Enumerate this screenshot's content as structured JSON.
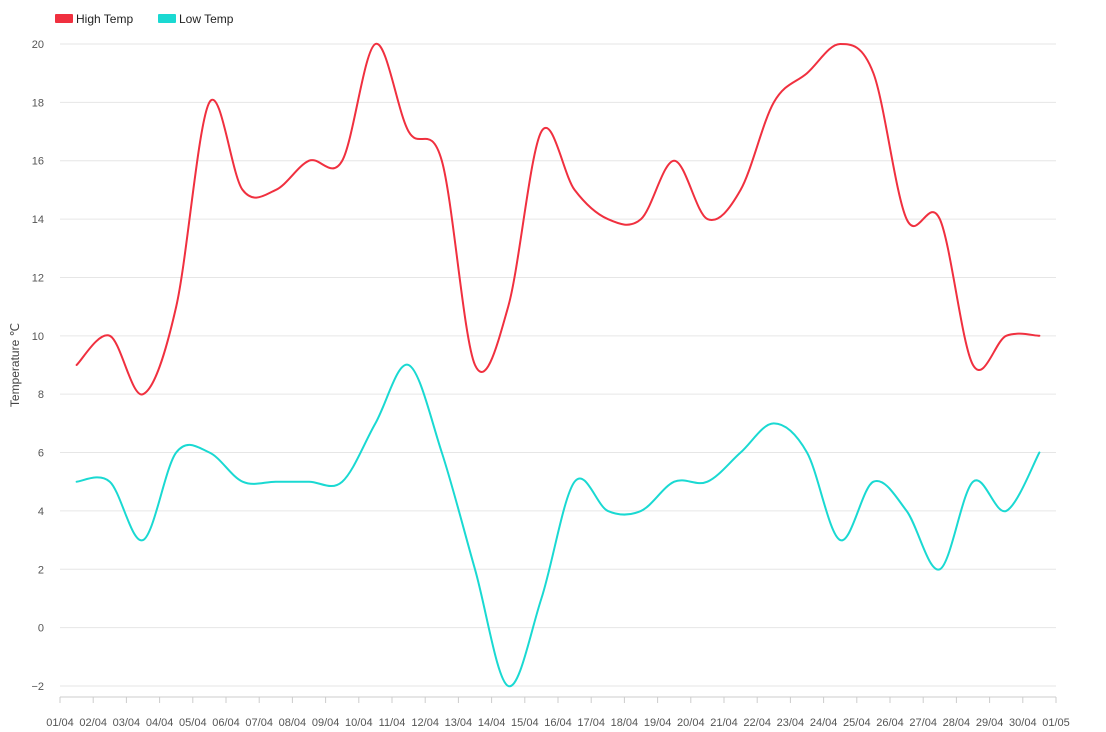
{
  "chart_data": {
    "type": "line",
    "title": "",
    "xlabel": "",
    "ylabel": "Temperature ℃",
    "ylim": [
      -2,
      20
    ],
    "yticks": [
      "20",
      "18",
      "16",
      "14",
      "12",
      "10",
      "8",
      "6",
      "4",
      "2",
      "0",
      "−2"
    ],
    "categories": [
      "04/01",
      "04/02",
      "04/03",
      "04/04",
      "04/05",
      "04/06",
      "04/07",
      "04/08",
      "04/09",
      "04/10",
      "04/11",
      "04/12",
      "04/13",
      "04/14",
      "04/15",
      "04/16",
      "04/17",
      "04/18",
      "04/19",
      "04/20",
      "04/21",
      "04/22",
      "04/23",
      "04/24",
      "04/25",
      "04/26",
      "04/27",
      "04/28",
      "04/29",
      "04/30"
    ],
    "x_tick_labels": [
      "01/04",
      "02/04",
      "03/04",
      "04/04",
      "05/04",
      "06/04",
      "07/04",
      "08/04",
      "09/04",
      "10/04",
      "11/04",
      "12/04",
      "13/04",
      "14/04",
      "15/04",
      "16/04",
      "17/04",
      "18/04",
      "19/04",
      "20/04",
      "21/04",
      "22/04",
      "23/04",
      "24/04",
      "25/04",
      "26/04",
      "27/04",
      "28/04",
      "29/04",
      "30/04",
      "01/05"
    ],
    "grid": true,
    "legend_position": "top-left",
    "series": [
      {
        "name": "High Temp",
        "color": "#f0303f",
        "values": [
          9,
          10,
          8,
          11,
          18,
          15,
          15,
          16,
          16,
          20,
          17,
          16,
          9,
          11,
          17,
          15,
          14,
          14,
          16,
          14,
          15,
          18,
          19,
          20,
          19,
          14,
          14,
          9,
          10,
          10
        ]
      },
      {
        "name": "Low Temp",
        "color": "#1ad9d2",
        "values": [
          5,
          5,
          3,
          6,
          6,
          5,
          5,
          5,
          5,
          7,
          9,
          6,
          2,
          -2,
          1,
          5,
          4,
          4,
          5,
          5,
          6,
          7,
          6,
          3,
          5,
          4,
          2,
          5,
          4,
          6
        ]
      }
    ]
  }
}
